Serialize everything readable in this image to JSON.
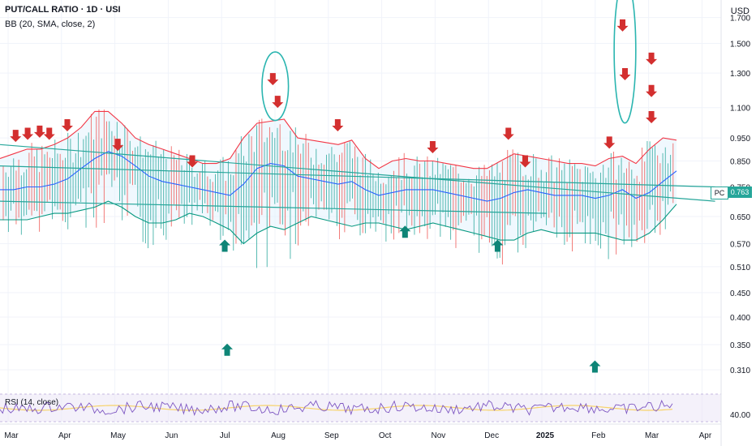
{
  "legend": {
    "title": "PUT/CALL RATIO · 1D · USI",
    "bb": "BB (20, SMA, close, 2)",
    "rsi": "RSI (14, close)"
  },
  "axis": {
    "currency": "USD",
    "last_tag": "PC",
    "last_value_label": "0.763"
  },
  "colors": {
    "up": "#26a69a",
    "down": "#ef5350",
    "bb_basis": "#2962ff",
    "bb_upper": "#f23645",
    "bb_lower": "#089981",
    "bb_fill": "#e3f2fd",
    "trendline": "#26a69a",
    "arrow_down": "#d32f2f",
    "arrow_up": "#0e8577",
    "highlight": "#2bb5b0",
    "rsi_line": "#7e57c2",
    "rsi_ma": "#f7d36b",
    "rsi_band": "#ede7f6"
  },
  "chart_data": {
    "type": "candlestick",
    "title": "PUT/CALL RATIO · 1D · USI",
    "scale": "log",
    "ylim": [
      0.28,
      1.85
    ],
    "y_ticks": [
      1.7,
      1.5,
      1.3,
      1.1,
      0.95,
      0.85,
      0.75,
      0.65,
      0.57,
      0.51,
      0.45,
      0.4,
      0.35,
      0.31
    ],
    "y_tick_labels": [
      "1.700",
      "1.500",
      "1.300",
      "1.100",
      "0.950",
      "0.850",
      "0.750",
      "0.650",
      "0.570",
      "0.510",
      "0.450",
      "0.400",
      "0.350",
      "0.310"
    ],
    "x_labels": [
      "Mar",
      "Apr",
      "May",
      "Jun",
      "Jul",
      "Aug",
      "Sep",
      "Oct",
      "Nov",
      "Dec",
      "2025",
      "Feb",
      "Mar",
      "Apr"
    ],
    "last_value": 0.763,
    "indicators": {
      "bollinger": {
        "length": 20,
        "ma": "SMA",
        "source": "close",
        "mult": 2
      },
      "rsi": {
        "length": 14,
        "source": "close",
        "band_label": "40.00"
      }
    },
    "bb_upper": [
      0.86,
      0.88,
      0.9,
      0.9,
      0.92,
      0.95,
      1.0,
      1.08,
      1.08,
      1.02,
      0.95,
      0.92,
      0.9,
      0.88,
      0.86,
      0.84,
      0.84,
      0.86,
      0.95,
      1.02,
      1.03,
      1.04,
      0.95,
      0.94,
      0.93,
      0.92,
      0.94,
      0.86,
      0.82,
      0.85,
      0.86,
      0.85,
      0.85,
      0.84,
      0.83,
      0.82,
      0.82,
      0.85,
      0.88,
      0.87,
      0.86,
      0.85,
      0.84,
      0.84,
      0.83,
      0.86,
      0.87,
      0.84,
      0.9,
      0.95,
      0.94
    ],
    "bb_basis": [
      0.74,
      0.74,
      0.75,
      0.75,
      0.76,
      0.78,
      0.82,
      0.86,
      0.89,
      0.87,
      0.83,
      0.79,
      0.77,
      0.76,
      0.75,
      0.74,
      0.73,
      0.72,
      0.76,
      0.82,
      0.84,
      0.83,
      0.79,
      0.78,
      0.77,
      0.76,
      0.77,
      0.74,
      0.72,
      0.73,
      0.74,
      0.74,
      0.74,
      0.73,
      0.72,
      0.71,
      0.7,
      0.71,
      0.73,
      0.74,
      0.73,
      0.72,
      0.72,
      0.72,
      0.71,
      0.72,
      0.74,
      0.71,
      0.73,
      0.77,
      0.81
    ],
    "bb_lower": [
      0.64,
      0.64,
      0.64,
      0.65,
      0.66,
      0.66,
      0.67,
      0.68,
      0.7,
      0.68,
      0.65,
      0.63,
      0.63,
      0.64,
      0.66,
      0.65,
      0.63,
      0.61,
      0.57,
      0.6,
      0.62,
      0.61,
      0.63,
      0.65,
      0.64,
      0.63,
      0.62,
      0.63,
      0.63,
      0.62,
      0.61,
      0.62,
      0.63,
      0.62,
      0.61,
      0.6,
      0.59,
      0.58,
      0.58,
      0.6,
      0.61,
      0.6,
      0.6,
      0.6,
      0.6,
      0.59,
      0.58,
      0.58,
      0.6,
      0.64,
      0.69
    ],
    "trendlines": [
      {
        "from": [
          0,
          0.92
        ],
        "to": [
          59,
          0.7
        ]
      },
      {
        "from": [
          0,
          0.83
        ],
        "to": [
          59,
          0.75
        ]
      },
      {
        "from": [
          0,
          0.7
        ],
        "to": [
          45,
          0.66
        ]
      }
    ],
    "arrows_down": [
      {
        "x": 0.8,
        "y": 0.95
      },
      {
        "x": 1.8,
        "y": 0.96
      },
      {
        "x": 2.8,
        "y": 0.97
      },
      {
        "x": 3.6,
        "y": 0.96
      },
      {
        "x": 5.1,
        "y": 1.0
      },
      {
        "x": 9.3,
        "y": 0.91
      },
      {
        "x": 15.5,
        "y": 0.84
      },
      {
        "x": 22.2,
        "y": 1.25
      },
      {
        "x": 22.6,
        "y": 1.12
      },
      {
        "x": 27.6,
        "y": 1.0
      },
      {
        "x": 35.5,
        "y": 0.9
      },
      {
        "x": 41.8,
        "y": 0.96
      },
      {
        "x": 43.2,
        "y": 0.84
      },
      {
        "x": 50.2,
        "y": 0.92
      },
      {
        "x": 51.3,
        "y": 1.62
      },
      {
        "x": 51.5,
        "y": 1.28
      },
      {
        "x": 53.7,
        "y": 1.38
      },
      {
        "x": 53.7,
        "y": 1.18
      },
      {
        "x": 53.7,
        "y": 1.04
      }
    ],
    "arrows_up": [
      {
        "x": 18.2,
        "y": 0.57
      },
      {
        "x": 33.2,
        "y": 0.61
      },
      {
        "x": 40.9,
        "y": 0.57
      },
      {
        "x": 18.4,
        "y": 0.345
      },
      {
        "x": 49.0,
        "y": 0.318
      }
    ],
    "highlights": [
      {
        "cx": 22.4,
        "cy": 1.22,
        "rx": 1.1,
        "ry_factor": 1.18
      },
      {
        "cx": 51.5,
        "cy": 1.45,
        "rx": 0.9,
        "ry_factor": 1.42
      }
    ]
  }
}
